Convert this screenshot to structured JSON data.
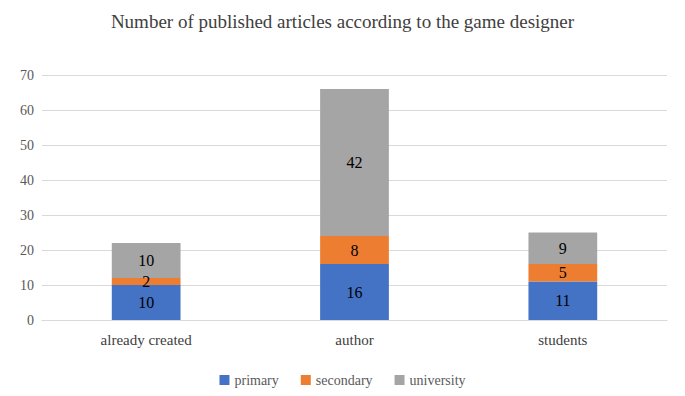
{
  "chart_data": {
    "type": "bar",
    "title": "Number of published articles according to the game designer",
    "categories": [
      "already created",
      "author",
      "students"
    ],
    "series": [
      {
        "name": "primary",
        "color": "#4472c4",
        "values": [
          10,
          16,
          11
        ]
      },
      {
        "name": "secondary",
        "color": "#ed7d31",
        "values": [
          2,
          8,
          5
        ]
      },
      {
        "name": "university",
        "color": "#a5a5a5",
        "values": [
          10,
          42,
          9
        ]
      }
    ],
    "ylim": [
      0,
      70
    ],
    "yticks": [
      0,
      10,
      20,
      30,
      40,
      50,
      60,
      70
    ],
    "grid": true,
    "stacked": true,
    "data_labels": true,
    "legend": "bottom"
  }
}
